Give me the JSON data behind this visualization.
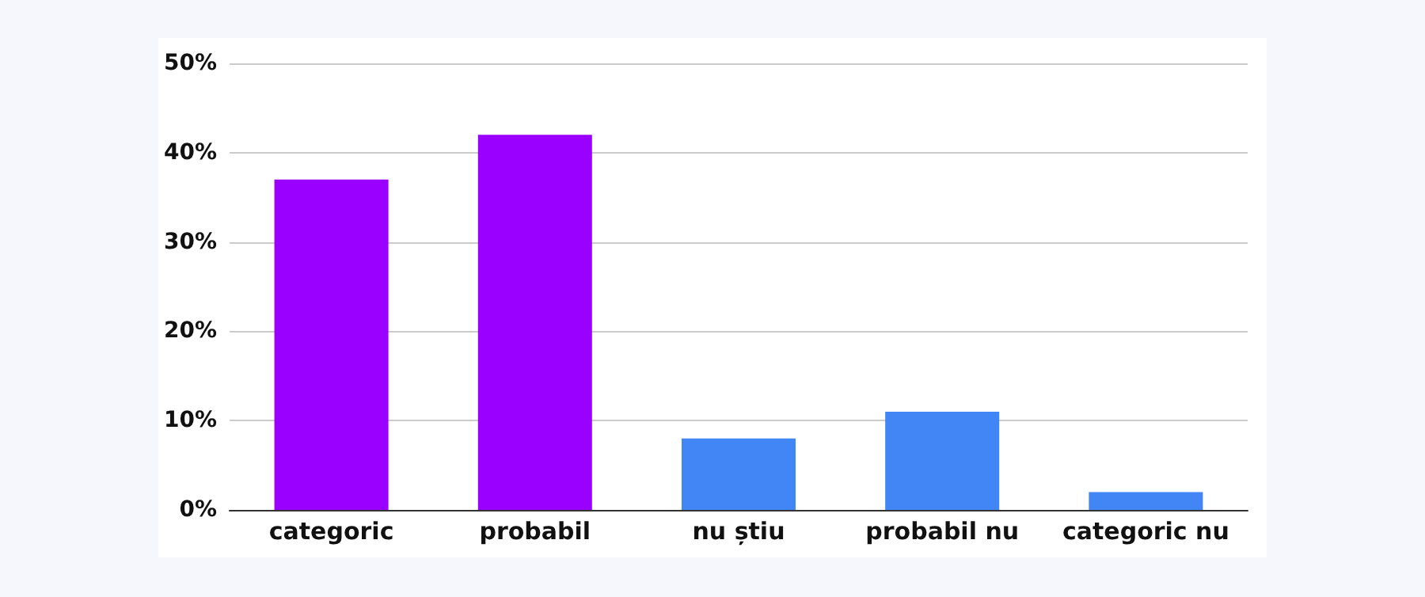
{
  "chart_data": {
    "type": "bar",
    "categories": [
      "categoric",
      "probabil",
      "nu știu",
      "probabil nu",
      "categoric nu"
    ],
    "values": [
      37,
      42,
      8,
      11,
      2
    ],
    "colors": [
      "#9900ff",
      "#9900ff",
      "#4285f4",
      "#4285f4",
      "#4285f4"
    ],
    "ylim": [
      0,
      50
    ],
    "yticks": [
      {
        "value": 0,
        "label": "0%"
      },
      {
        "value": 10,
        "label": "10%"
      },
      {
        "value": 20,
        "label": "20%"
      },
      {
        "value": 30,
        "label": "30%"
      },
      {
        "value": 40,
        "label": "40%"
      },
      {
        "value": 50,
        "label": "50%"
      }
    ],
    "grid": "y"
  }
}
